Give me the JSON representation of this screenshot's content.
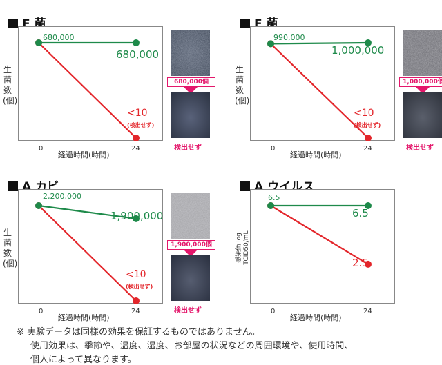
{
  "chart_data": [
    {
      "type": "line",
      "title": "E 菌",
      "ylabel": "生菌数(個)",
      "xlabel": "経過時間(時間)",
      "x_ticks": [
        "0",
        "24"
      ],
      "series": [
        {
          "name": "",
          "color": "#1e8a4a",
          "x": [
            0,
            24
          ],
          "values": [
            680000,
            680000
          ],
          "labels": [
            "680,000",
            "680,000"
          ]
        },
        {
          "name": "",
          "color": "#e3262b",
          "x": [
            0,
            24
          ],
          "values": [
            680000,
            0
          ],
          "labels": [
            "",
            "<10"
          ],
          "end_note": "(検出せず)"
        }
      ],
      "image_count": "680,000個",
      "image_result": "検出せず"
    },
    {
      "type": "line",
      "title": "F 菌",
      "ylabel": "生菌数(個)",
      "xlabel": "経過時間(時間)",
      "x_ticks": [
        "0",
        "24"
      ],
      "series": [
        {
          "name": "",
          "color": "#1e8a4a",
          "x": [
            0,
            24
          ],
          "values": [
            990000,
            1000000
          ],
          "labels": [
            "990,000",
            "1,000,000"
          ]
        },
        {
          "name": "",
          "color": "#e3262b",
          "x": [
            0,
            24
          ],
          "values": [
            990000,
            0
          ],
          "labels": [
            "",
            "<10"
          ],
          "end_note": "(検出せず)"
        }
      ],
      "image_count": "1,000,000個",
      "image_result": "検出せず"
    },
    {
      "type": "line",
      "title": "A カビ",
      "ylabel": "生菌数(個)",
      "xlabel": "経過時間(時間)",
      "x_ticks": [
        "0",
        "24"
      ],
      "series": [
        {
          "name": "",
          "color": "#1e8a4a",
          "x": [
            0,
            24
          ],
          "values": [
            2200000,
            1900000
          ],
          "labels": [
            "2,200,000",
            "1,900,000"
          ]
        },
        {
          "name": "",
          "color": "#e3262b",
          "x": [
            0,
            24
          ],
          "values": [
            2200000,
            0
          ],
          "labels": [
            "",
            "<10"
          ],
          "end_note": "(検出せず)"
        }
      ],
      "image_count": "1,900,000個",
      "image_result": "検出せず"
    },
    {
      "type": "line",
      "title": "A ウイルス",
      "ylabel": "感染価 log TCID50/mL",
      "xlabel": "経過時間(時間)",
      "x_ticks": [
        "0",
        "24"
      ],
      "series": [
        {
          "name": "",
          "color": "#1e8a4a",
          "x": [
            0,
            24
          ],
          "values": [
            6.5,
            6.5
          ],
          "labels": [
            "6.5",
            "6.5"
          ]
        },
        {
          "name": "",
          "color": "#e3262b",
          "x": [
            0,
            24
          ],
          "values": [
            6.5,
            2.5
          ],
          "labels": [
            "",
            "2.5"
          ]
        }
      ]
    }
  ],
  "notes": {
    "line1": "※ 実験データは同様の効果を保証するものではありません。",
    "line2": "使用効果は、季節や、温度、湿度、お部屋の状況などの周囲環境や、使用時間、",
    "line3": "個人によって異なります。"
  }
}
